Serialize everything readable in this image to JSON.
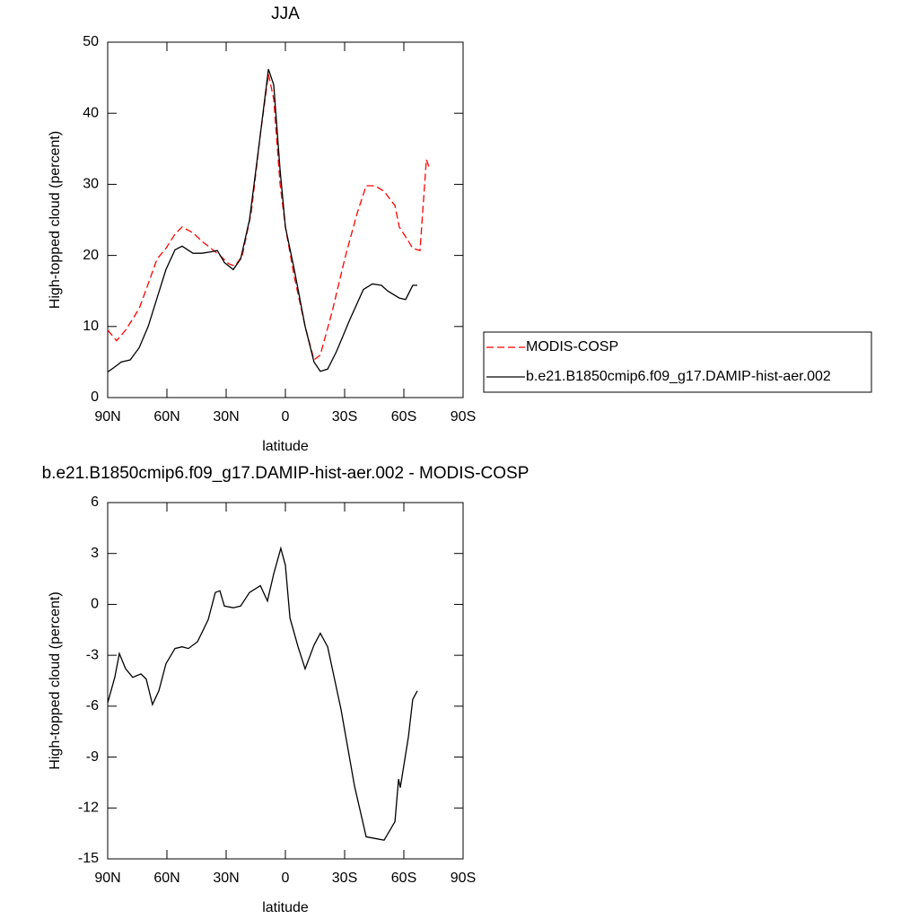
{
  "chart_data": [
    {
      "type": "line",
      "title": "JJA",
      "xlabel": "latitude",
      "ylabel": "High-topped cloud (percent)",
      "xlim": [
        90,
        -90
      ],
      "ylim": [
        0,
        50
      ],
      "xticks": [
        {
          "value": 90,
          "label": "90N"
        },
        {
          "value": 60,
          "label": "60N"
        },
        {
          "value": 30,
          "label": "30N"
        },
        0,
        {
          "value": -30,
          "label": "30S"
        },
        {
          "value": -60,
          "label": "60S"
        },
        {
          "value": -90,
          "label": "90S"
        }
      ],
      "yticks": [
        0,
        10,
        20,
        30,
        40,
        50
      ],
      "legend": "right",
      "series": [
        {
          "name": "MODIS-COSP",
          "color": "#ff0000",
          "linestyle": "dashed",
          "x": [
            90,
            85.5,
            80.9,
            74.1,
            69.5,
            65,
            60.5,
            55.9,
            52.3,
            46.8,
            42.3,
            37.7,
            33.2,
            28.6,
            25.5,
            21.8,
            17.3,
            12.7,
            8.6,
            5.9,
            2.7,
            0,
            -4.5,
            -10,
            -14.5,
            -17.7,
            -23.6,
            -30.5,
            -36.4,
            -40.9,
            -45.5,
            -50,
            -55.5,
            -57.7,
            -62.3,
            -64.5,
            -68.2,
            -71.4,
            -72.7
          ],
          "values": [
            9.5,
            8,
            9.5,
            12.5,
            16,
            19.5,
            21,
            23,
            24,
            23.2,
            22,
            21,
            20,
            18.8,
            18.5,
            20,
            26,
            37,
            45.5,
            42,
            30,
            24,
            17,
            10,
            5.3,
            6,
            12,
            20,
            26,
            29.8,
            29.8,
            29,
            27,
            24,
            22,
            21,
            20.7,
            33.5,
            32.5
          ]
        },
        {
          "name": "b.e21.B1850cmip6.f09_g17.DAMIP-hist-aer.002",
          "color": "#000000",
          "linestyle": "solid",
          "x": [
            90,
            85.5,
            83.2,
            78.6,
            74.1,
            69.5,
            65,
            60.5,
            55.9,
            52.3,
            46.8,
            42.3,
            37.7,
            34.5,
            30.9,
            26.4,
            22.7,
            18.2,
            13.6,
            8.6,
            5.9,
            2.7,
            0,
            -4.5,
            -10,
            -14.5,
            -17.7,
            -21.4,
            -25.9,
            -32.7,
            -39.5,
            -44.1,
            -48.6,
            -51.8,
            -57.7,
            -60.9,
            -64.5,
            -66.8
          ],
          "values": [
            3.6,
            4.5,
            5,
            5.3,
            7,
            10,
            14,
            18,
            20.8,
            21.3,
            20.3,
            20.3,
            20.5,
            20.7,
            19,
            18,
            19.5,
            25,
            35,
            46.2,
            44,
            32,
            24,
            18,
            10,
            5,
            3.7,
            4,
            6.5,
            11,
            15.2,
            16,
            15.8,
            15,
            14,
            13.8,
            15.8,
            15.8
          ]
        }
      ]
    },
    {
      "type": "line",
      "title": "b.e21.B1850cmip6.f09_g17.DAMIP-hist-aer.002 - MODIS-COSP",
      "xlabel": "latitude",
      "ylabel": "High-topped cloud (percent)",
      "xlim": [
        90,
        -90
      ],
      "ylim": [
        -15,
        6
      ],
      "xticks": [
        {
          "value": 90,
          "label": "90N"
        },
        {
          "value": 60,
          "label": "60N"
        },
        {
          "value": 30,
          "label": "30N"
        },
        0,
        {
          "value": -30,
          "label": "30S"
        },
        {
          "value": -60,
          "label": "60S"
        },
        {
          "value": -90,
          "label": "90S"
        }
      ],
      "yticks": [
        -15,
        -12,
        -9,
        -6,
        -3,
        0,
        3,
        6
      ],
      "series": [
        {
          "color": "#000000",
          "linestyle": "solid",
          "x": [
            90,
            86.4,
            84.1,
            80.9,
            77.3,
            73.2,
            70.5,
            67.3,
            64.1,
            60.5,
            55.9,
            52.3,
            49.1,
            44.5,
            39.1,
            35.5,
            33.2,
            30.9,
            26.4,
            22.7,
            18.2,
            12.7,
            9.1,
            5.9,
            2.3,
            0,
            -2.3,
            -6.4,
            -10,
            -14.5,
            -17.7,
            -21.4,
            -28.2,
            -35,
            -40.9,
            -45.5,
            -50,
            -55.5,
            -57.3,
            -58.2,
            -62.3,
            -64.5,
            -66.8
          ],
          "values": [
            -5.8,
            -4.3,
            -2.9,
            -3.8,
            -4.3,
            -4.1,
            -4.4,
            -5.9,
            -5.1,
            -3.5,
            -2.6,
            -2.5,
            -2.6,
            -2.2,
            -0.9,
            0.7,
            0.8,
            -0.1,
            -0.2,
            -0.1,
            0.7,
            1.1,
            0.2,
            1.8,
            3.3,
            2.3,
            -0.8,
            -2.5,
            -3.8,
            -2.4,
            -1.7,
            -2.5,
            -6.2,
            -10.7,
            -13.7,
            -13.8,
            -13.9,
            -12.8,
            -10.3,
            -10.8,
            -7.8,
            -5.6,
            -5.1
          ]
        }
      ]
    }
  ]
}
